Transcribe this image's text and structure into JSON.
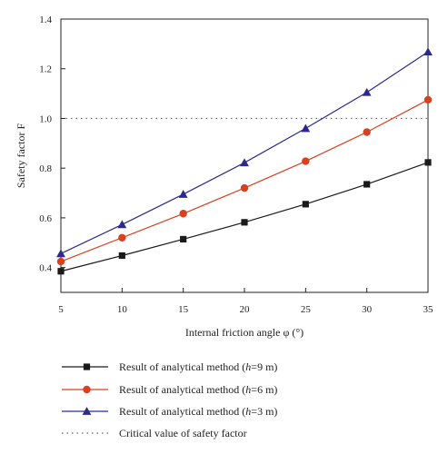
{
  "chart_data": {
    "type": "line",
    "xlabel": "Internal friction angle φ (°)",
    "ylabel": "Safety factor F",
    "xlim": [
      5,
      35
    ],
    "ylim": [
      0.3,
      1.4
    ],
    "x_ticks": [
      5,
      10,
      15,
      20,
      25,
      30,
      35
    ],
    "y_ticks": [
      0.4,
      0.6,
      0.8,
      1.0,
      1.2,
      1.4
    ],
    "y_tick_labels": [
      "0.4",
      "0.6",
      "0.8",
      "1.0",
      "1.2",
      "1.4"
    ],
    "grid": false,
    "legend_position": "below plot",
    "x": [
      5,
      10,
      15,
      20,
      25,
      30,
      35
    ],
    "series": [
      {
        "name": "h=9 m",
        "legend_parts": [
          "Result of analytical method (",
          "h",
          "=9 m)"
        ],
        "marker": "square",
        "color": "#1a1a1a",
        "values": [
          0.385,
          0.448,
          0.514,
          0.582,
          0.655,
          0.735,
          0.823
        ]
      },
      {
        "name": "h=6 m",
        "legend_parts": [
          "Result of analytical method (",
          "h",
          "=6 m)"
        ],
        "marker": "circle",
        "color": "#d8401f",
        "values": [
          0.424,
          0.52,
          0.617,
          0.72,
          0.828,
          0.945,
          1.075
        ]
      },
      {
        "name": "h=3 m",
        "legend_parts": [
          "Result of analytical method (",
          "h",
          "=3 m)"
        ],
        "marker": "triangle",
        "color": "#2b2a8c",
        "values": [
          0.456,
          0.573,
          0.695,
          0.822,
          0.96,
          1.105,
          1.268
        ]
      }
    ],
    "reference_line": {
      "name": "Critical value of safety factor",
      "y": 1.0,
      "style": "dotted",
      "color": "#666666"
    }
  }
}
